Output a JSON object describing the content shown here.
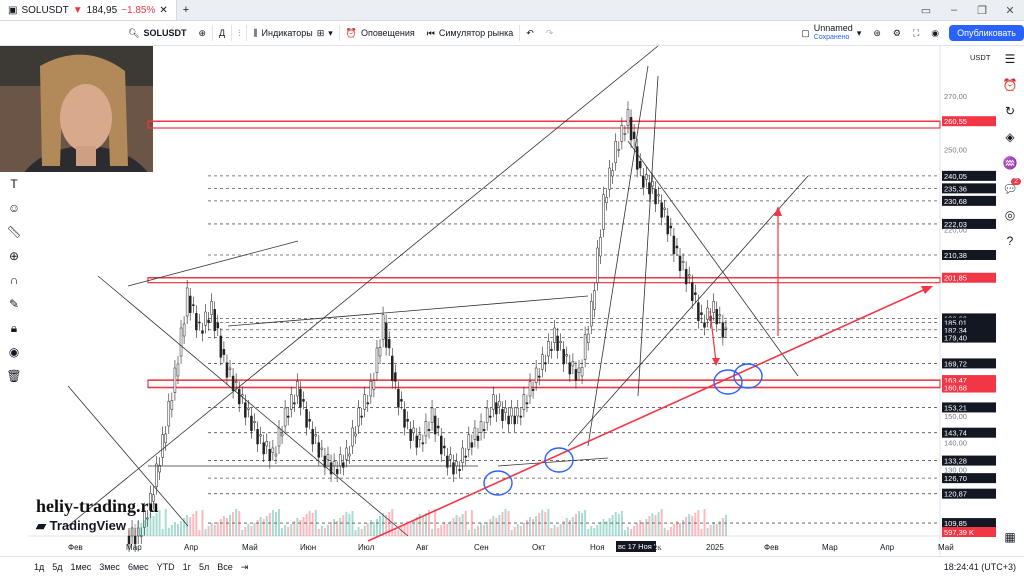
{
  "tab": {
    "symbol": "SOLUSDT",
    "price": "184,95",
    "change": "−1.85%"
  },
  "toolbar": {
    "search_symbol": "SOLUSDT",
    "indicators": "Индикаторы",
    "alerts": "Оповещения",
    "simulator": "Симулятор рынка",
    "layout_name": "Unnamed",
    "layout_status": "Сохранено",
    "publish": "Опубликовать"
  },
  "price_axis": {
    "currency": "USDT",
    "ticks": [
      "270,00",
      "260,55",
      "250,00",
      "240,05",
      "235,36",
      "230,68",
      "222,03",
      "220,00",
      "210,38",
      "201,85",
      "186,60",
      "185,01",
      "182,34",
      "179,40",
      "169,72",
      "163,47",
      "160,68",
      "153,21",
      "150,00",
      "143,74",
      "140,00",
      "133,28",
      "130,00",
      "126,70",
      "120,87",
      "109,85",
      "597,39 K"
    ]
  },
  "time_axis": {
    "labels": [
      "Фев",
      "Мар",
      "Апр",
      "Май",
      "Июн",
      "Июл",
      "Авг",
      "Сен",
      "Окт",
      "Ноя",
      "Дек",
      "2025",
      "Фев",
      "Мар",
      "Апр",
      "Май"
    ],
    "cursor_label": "вс 17 Ноя '24"
  },
  "bottom": {
    "ranges": [
      "1д",
      "5д",
      "1мес",
      "3мес",
      "6мес",
      "YTD",
      "1г",
      "5л",
      "Все"
    ],
    "clock": "18:24:41 (UTC+3)"
  },
  "watermark": {
    "site": "heliy-trading.ru",
    "brand": "TradingView"
  },
  "colors": {
    "up": "#089981",
    "down": "#f23645",
    "accent": "#2962ff",
    "level": "#f23645"
  },
  "chart_data": {
    "type": "candlestick",
    "symbol": "SOLUSDT",
    "ylim": [
      105,
      285
    ],
    "horizontal_levels": [
      260.55,
      240.05,
      235.36,
      230.68,
      222.03,
      210.38,
      201.85,
      186.6,
      185.01,
      182.34,
      179.4,
      169.72,
      163.47,
      160.68,
      153.21,
      143.74,
      133.28,
      126.7,
      120.87,
      109.85
    ],
    "approx_closes": [
      105,
      118,
      140,
      165,
      195,
      182,
      190,
      170,
      160,
      150,
      140,
      135,
      150,
      160,
      145,
      135,
      130,
      135,
      150,
      160,
      185,
      160,
      145,
      140,
      150,
      135,
      130,
      140,
      145,
      155,
      150,
      150,
      160,
      170,
      180,
      170,
      165,
      190,
      230,
      250,
      262,
      240,
      235,
      225,
      210,
      200,
      185,
      190,
      180
    ]
  }
}
